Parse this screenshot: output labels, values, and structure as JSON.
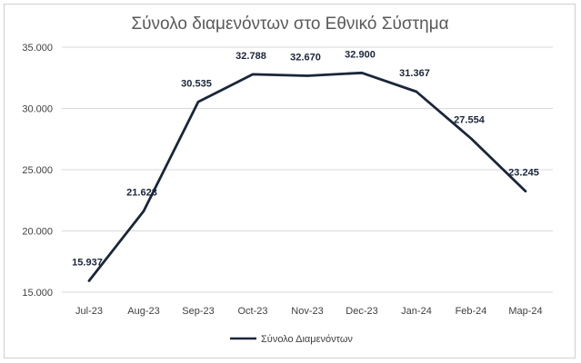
{
  "chart_data": {
    "type": "line",
    "title": "Σύνολο διαμενόντων στο Εθνικό Σύστημα",
    "categories": [
      "Jul-23",
      "Aug-23",
      "Sep-23",
      "Oct-23",
      "Nov-23",
      "Dec-23",
      "Jan-24",
      "Feb-24",
      "Map-24"
    ],
    "series": [
      {
        "name": "Σύνολο Διαμενόντων",
        "values": [
          15937,
          21623,
          30535,
          32788,
          32670,
          32900,
          31367,
          27554,
          23245
        ],
        "labels": [
          "15.937",
          "21.623",
          "30.535",
          "32.788",
          "32.670",
          "32.900",
          "31.367",
          "27.554",
          "23.245"
        ],
        "color": "#1a2639"
      }
    ],
    "ylim": [
      15000,
      35000
    ],
    "yticks": [
      15000,
      20000,
      25000,
      30000,
      35000
    ],
    "ytick_labels": [
      "15.000",
      "20.000",
      "25.000",
      "30.000",
      "35.000"
    ],
    "grid": true,
    "legend": "bottom"
  },
  "colors": {
    "line": "#1a2639",
    "grid": "#d9d9d9",
    "text": "#404040"
  }
}
